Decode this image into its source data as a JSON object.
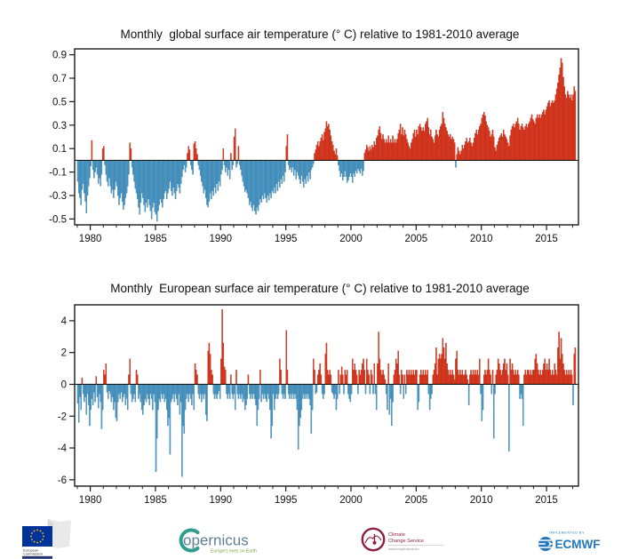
{
  "page": {
    "background": "#ffffff"
  },
  "chart_data": [
    {
      "type": "bar",
      "title": "Monthly  global surface air temperature (° C) relative to 1981-2010 average",
      "xlabel": "",
      "ylabel": "",
      "legend": "none",
      "grid": false,
      "start_year": 1979,
      "xlim": [
        1978.8,
        2017.45
      ],
      "ylim": [
        -0.55,
        0.95
      ],
      "yticks": [
        -0.5,
        -0.3,
        -0.1,
        0.1,
        0.3,
        0.5,
        0.7,
        0.9
      ],
      "ytick_format": "decimal",
      "xticks": [
        1980,
        1985,
        1990,
        1995,
        2000,
        2005,
        2010,
        2015
      ],
      "colors": {
        "positive_fill": "#e8391f",
        "positive_edge": "#9e2310",
        "negative_fill": "#4f9fca",
        "negative_edge": "#2f6f9d",
        "axis": "#1a1a1a"
      },
      "values": [
        -0.18,
        -0.28,
        -0.32,
        -0.38,
        -0.25,
        -0.2,
        -0.28,
        -0.35,
        -0.45,
        -0.3,
        -0.22,
        -0.15,
        -0.05,
        0.17,
        -0.08,
        -0.15,
        -0.1,
        -0.06,
        -0.12,
        -0.2,
        -0.15,
        -0.22,
        -0.12,
        0.1,
        0.12,
        -0.04,
        -0.12,
        -0.18,
        -0.22,
        -0.15,
        -0.22,
        -0.28,
        -0.25,
        -0.32,
        -0.25,
        -0.18,
        -0.22,
        -0.3,
        -0.38,
        -0.32,
        -0.28,
        -0.35,
        -0.42,
        -0.38,
        -0.32,
        -0.28,
        -0.22,
        -0.12,
        0.15,
        0.1,
        -0.06,
        -0.12,
        -0.18,
        -0.24,
        -0.28,
        -0.33,
        -0.4,
        -0.46,
        -0.36,
        -0.28,
        -0.32,
        -0.38,
        -0.44,
        -0.36,
        -0.4,
        -0.33,
        -0.38,
        -0.43,
        -0.5,
        -0.4,
        -0.36,
        -0.44,
        -0.46,
        -0.52,
        -0.43,
        -0.38,
        -0.33,
        -0.36,
        -0.4,
        -0.33,
        -0.28,
        -0.26,
        -0.33,
        -0.28,
        -0.24,
        -0.18,
        -0.26,
        -0.3,
        -0.23,
        -0.28,
        -0.33,
        -0.26,
        -0.2,
        -0.23,
        -0.28,
        -0.2,
        -0.14,
        -0.08,
        -0.04,
        -0.1,
        -0.06,
        0.06,
        0.12,
        0.09,
        -0.04,
        -0.08,
        -0.12,
        0.14,
        0.16,
        0.1,
        0.05,
        -0.04,
        -0.08,
        -0.13,
        -0.18,
        -0.22,
        -0.28,
        -0.25,
        -0.32,
        -0.38,
        -0.4,
        -0.35,
        -0.28,
        -0.33,
        -0.26,
        -0.3,
        -0.23,
        -0.28,
        -0.2,
        -0.26,
        -0.18,
        -0.22,
        -0.12,
        -0.08,
        0.1,
        -0.04,
        -0.1,
        -0.06,
        -0.13,
        -0.08,
        -0.16,
        0.06,
        -0.08,
        -0.04,
        0.2,
        0.27,
        -0.06,
        -0.03,
        0.12,
        -0.04,
        -0.08,
        -0.13,
        -0.18,
        -0.22,
        -0.27,
        -0.25,
        -0.28,
        -0.32,
        -0.38,
        -0.35,
        -0.4,
        -0.43,
        -0.38,
        -0.43,
        -0.46,
        -0.4,
        -0.43,
        -0.38,
        -0.33,
        -0.36,
        -0.3,
        -0.33,
        -0.28,
        -0.32,
        -0.36,
        -0.3,
        -0.34,
        -0.28,
        -0.32,
        -0.26,
        -0.28,
        -0.23,
        -0.28,
        -0.2,
        -0.26,
        -0.18,
        -0.23,
        -0.16,
        -0.2,
        -0.13,
        -0.18,
        -0.1,
        0.12,
        0.22,
        -0.04,
        -0.08,
        -0.06,
        -0.1,
        -0.06,
        -0.13,
        -0.08,
        -0.16,
        -0.1,
        -0.13,
        -0.16,
        -0.2,
        -0.13,
        -0.18,
        -0.23,
        -0.16,
        -0.2,
        -0.13,
        -0.18,
        -0.1,
        -0.16,
        -0.08,
        -0.06,
        -0.03,
        0.06,
        0.09,
        0.13,
        0.16,
        0.12,
        0.16,
        0.19,
        0.22,
        0.17,
        0.24,
        0.27,
        0.33,
        0.29,
        0.31,
        0.26,
        0.21,
        0.16,
        0.13,
        0.08,
        0.05,
        0.1,
        0.04,
        -0.04,
        -0.09,
        -0.14,
        -0.11,
        -0.17,
        -0.14,
        -0.09,
        -0.14,
        -0.19,
        -0.17,
        -0.14,
        -0.11,
        -0.14,
        -0.19,
        -0.11,
        -0.14,
        -0.09,
        -0.11,
        -0.07,
        -0.09,
        -0.11,
        -0.07,
        -0.13,
        -0.09,
        0.06,
        0.09,
        0.13,
        0.11,
        0.08,
        0.12,
        0.09,
        0.13,
        0.11,
        0.16,
        0.13,
        0.19,
        0.21,
        0.26,
        0.29,
        0.23,
        0.18,
        0.22,
        0.18,
        0.15,
        0.18,
        0.15,
        0.21,
        0.15,
        0.18,
        0.15,
        0.21,
        0.15,
        0.18,
        0.15,
        0.18,
        0.23,
        0.26,
        0.31,
        0.22,
        0.28,
        0.21,
        0.26,
        0.22,
        0.18,
        0.15,
        0.12,
        0.1,
        0.15,
        0.18,
        0.23,
        0.26,
        0.2,
        0.26,
        0.22,
        0.29,
        0.31,
        0.28,
        0.25,
        0.28,
        0.25,
        0.31,
        0.33,
        0.36,
        0.28,
        0.22,
        0.26,
        0.2,
        0.18,
        0.15,
        0.21,
        0.26,
        0.22,
        0.2,
        0.26,
        0.29,
        0.31,
        0.41,
        0.36,
        0.31,
        0.28,
        0.25,
        0.22,
        0.2,
        0.22,
        0.18,
        0.2,
        0.18,
        0.15,
        -0.06,
        0.05,
        0.11,
        0.08,
        0.05,
        0.08,
        0.13,
        0.1,
        0.13,
        0.16,
        0.19,
        0.15,
        0.16,
        0.19,
        0.15,
        0.12,
        0.15,
        0.19,
        0.23,
        0.26,
        0.22,
        0.26,
        0.29,
        0.31,
        0.36,
        0.39,
        0.41,
        0.38,
        0.33,
        0.3,
        0.28,
        0.25,
        0.2,
        0.22,
        0.26,
        0.2,
        0.11,
        0.08,
        0.13,
        0.16,
        0.19,
        0.21,
        0.23,
        0.2,
        0.26,
        0.22,
        0.2,
        0.18,
        0.15,
        0.12,
        0.21,
        0.26,
        0.29,
        0.31,
        0.28,
        0.31,
        0.33,
        0.36,
        0.31,
        0.26,
        0.29,
        0.31,
        0.28,
        0.26,
        0.29,
        0.31,
        0.28,
        0.31,
        0.33,
        0.36,
        0.39,
        0.35,
        0.33,
        0.31,
        0.36,
        0.39,
        0.36,
        0.39,
        0.36,
        0.39,
        0.41,
        0.43,
        0.39,
        0.43,
        0.46,
        0.49,
        0.51,
        0.46,
        0.49,
        0.51,
        0.49,
        0.51,
        0.56,
        0.61,
        0.66,
        0.73,
        0.79,
        0.87,
        0.83,
        0.71,
        0.63,
        0.56,
        0.53,
        0.59,
        0.56,
        0.53,
        0.56,
        0.51,
        0.56,
        0.63,
        0.59
      ]
    },
    {
      "type": "bar",
      "title": "Monthly  European surface air temperature (° C) relative to 1981-2010 average",
      "xlabel": "",
      "ylabel": "",
      "legend": "none",
      "grid": false,
      "start_year": 1979,
      "xlim": [
        1978.8,
        2017.45
      ],
      "ylim": [
        -6.4,
        5.0
      ],
      "yticks": [
        -6,
        -4,
        -2,
        0,
        2,
        4
      ],
      "ytick_format": "int",
      "xticks": [
        1980,
        1985,
        1990,
        1995,
        2000,
        2005,
        2010,
        2015
      ],
      "colors": {
        "positive_fill": "#e8391f",
        "positive_edge": "#9e2310",
        "negative_fill": "#4f9fca",
        "negative_edge": "#2f6f9d",
        "axis": "#1a1a1a"
      },
      "values": [
        -1.2,
        -2.4,
        -0.8,
        -1.6,
        0.4,
        -0.6,
        -1.1,
        -0.8,
        -1.9,
        -0.6,
        -1.3,
        -2.6,
        -1.6,
        -0.9,
        -1.3,
        -0.5,
        -1.1,
        0.5,
        -0.8,
        -1.5,
        -0.6,
        -1.1,
        -2.8,
        -1.6,
        0.9,
        0.6,
        1.3,
        -0.5,
        -0.9,
        -0.4,
        -0.6,
        -1.1,
        -0.8,
        -1.6,
        -1.1,
        -2.1,
        -2.3,
        -1.1,
        -0.6,
        -0.9,
        -0.5,
        -1.1,
        -0.8,
        -0.6,
        -1.3,
        -0.9,
        -1.6,
        0.6,
        1.6,
        -0.6,
        -1.1,
        -0.9,
        -0.6,
        -1.1,
        0.9,
        0.6,
        -0.9,
        -0.6,
        -1.1,
        -1.6,
        -1.9,
        -1.3,
        -0.9,
        -1.1,
        -0.6,
        -0.9,
        -1.3,
        -0.6,
        -0.9,
        -1.6,
        -0.6,
        -1.1,
        -5.5,
        -3.4,
        -1.6,
        -0.9,
        -1.1,
        -0.6,
        -0.9,
        -0.6,
        -1.1,
        -0.9,
        -1.6,
        -2.6,
        -2.1,
        -4.4,
        -1.1,
        -0.9,
        -0.6,
        -1.1,
        -0.6,
        -0.9,
        -1.3,
        -0.6,
        -1.9,
        -1.1,
        -5.8,
        -2.6,
        -3.1,
        -1.6,
        -0.9,
        -0.6,
        -1.1,
        -0.6,
        -0.9,
        -1.3,
        -0.6,
        -1.6,
        1.3,
        0.9,
        0.6,
        -0.6,
        -0.9,
        -0.6,
        -1.1,
        -0.6,
        -0.9,
        -0.6,
        -1.9,
        -2.3,
        2.1,
        2.6,
        1.9,
        0.9,
        0.6,
        -0.6,
        -0.9,
        -0.6,
        -0.9,
        -0.6,
        -0.4,
        -0.9,
        1.6,
        4.7,
        2.6,
        1.1,
        0.9,
        -0.6,
        -0.9,
        -0.6,
        -0.9,
        0.6,
        -0.6,
        -0.9,
        -0.6,
        -1.6,
        0.9,
        -0.6,
        -0.9,
        -0.6,
        -0.9,
        -0.6,
        -1.1,
        -0.9,
        -1.6,
        -1.3,
        -0.9,
        0.6,
        -0.6,
        -0.9,
        -0.6,
        -0.9,
        -0.6,
        -0.9,
        -1.3,
        -2.6,
        -1.6,
        -0.9,
        0.9,
        -1.1,
        -0.6,
        -0.9,
        -0.6,
        -0.9,
        -1.1,
        -0.6,
        -0.9,
        -1.6,
        -3.4,
        -2.6,
        -0.6,
        -1.6,
        -0.9,
        -0.6,
        -0.9,
        -0.6,
        1.6,
        0.9,
        -0.6,
        -0.9,
        -0.6,
        -0.9,
        3.4,
        0.9,
        -0.6,
        -0.9,
        -0.6,
        -0.9,
        -0.6,
        -0.9,
        -0.6,
        -0.9,
        -1.6,
        -4.1,
        -2.6,
        -2.1,
        -1.6,
        -0.9,
        -0.6,
        -0.9,
        -0.6,
        -0.9,
        -0.6,
        -0.9,
        -1.3,
        -3.1,
        -1.6,
        1.6,
        0.9,
        -0.6,
        -0.5,
        0.6,
        0.9,
        1.3,
        0.6,
        -0.6,
        -0.9,
        -0.6,
        1.9,
        2.6,
        0.9,
        0.6,
        0.9,
        0.6,
        -0.5,
        -0.6,
        -0.9,
        -0.6,
        -1.6,
        -0.9,
        0.9,
        -0.6,
        0.6,
        1.1,
        0.6,
        -0.6,
        0.9,
        0.6,
        0.9,
        -0.6,
        -0.9,
        -1.1,
        -0.6,
        1.6,
        0.9,
        1.3,
        0.9,
        0.6,
        -0.6,
        0.9,
        0.6,
        0.9,
        1.3,
        1.6,
        0.9,
        -0.6,
        1.6,
        0.9,
        0.6,
        -0.6,
        0.9,
        0.6,
        -0.6,
        1.3,
        -0.6,
        -1.6,
        1.3,
        3.3,
        1.6,
        0.9,
        0.6,
        0.9,
        0.6,
        0.3,
        -0.6,
        -1.6,
        1.3,
        -1.9,
        -0.9,
        -2.6,
        -1.1,
        0.6,
        0.9,
        1.6,
        1.3,
        2.1,
        0.6,
        -0.6,
        0.9,
        0.6,
        -0.9,
        0.6,
        -0.6,
        0.9,
        0.6,
        0.9,
        0.6,
        0.9,
        0.6,
        0.9,
        0.6,
        0.9,
        0.9,
        -1.6,
        -1.1,
        0.6,
        0.9,
        0.6,
        0.9,
        0.6,
        0.9,
        0.6,
        0.9,
        -0.6,
        -1.6,
        -0.9,
        -0.6,
        0.6,
        0.9,
        1.3,
        2.3,
        0.6,
        1.6,
        1.9,
        1.6,
        1.9,
        2.9,
        2.3,
        1.6,
        2.6,
        1.3,
        0.9,
        0.6,
        0.9,
        0.6,
        0.9,
        0.6,
        0.3,
        1.6,
        2.1,
        0.9,
        0.6,
        0.9,
        0.6,
        0.9,
        0.6,
        0.6,
        0.9,
        0.6,
        0.3,
        -1.3,
        0.6,
        0.9,
        0.6,
        0.9,
        0.6,
        0.9,
        0.6,
        0.9,
        0.6,
        1.6,
        -0.6,
        -2.3,
        -1.6,
        0.6,
        0.9,
        0.6,
        0.9,
        1.6,
        0.9,
        0.6,
        -0.6,
        0.9,
        -3.4,
        -0.6,
        0.6,
        0.9,
        1.6,
        1.3,
        0.9,
        0.6,
        0.9,
        1.3,
        1.6,
        0.9,
        1.3,
        0.6,
        -4.2,
        1.6,
        0.9,
        1.3,
        0.9,
        0.6,
        0.9,
        0.6,
        0.9,
        0.6,
        -0.9,
        -0.6,
        -0.9,
        -2.6,
        0.6,
        0.9,
        0.6,
        0.9,
        0.9,
        0.6,
        0.9,
        0.6,
        0.9,
        0.9,
        1.6,
        1.9,
        1.3,
        0.9,
        0.6,
        0.9,
        0.6,
        0.9,
        1.3,
        1.6,
        0.9,
        1.3,
        0.9,
        1.6,
        0.9,
        0.6,
        0.9,
        0.6,
        1.3,
        0.9,
        0.6,
        2.3,
        3.3,
        1.6,
        2.9,
        1.9,
        1.3,
        0.9,
        0.6,
        0.9,
        0.6,
        0.9,
        0.6,
        0.9,
        0.6,
        -1.3,
        1.9,
        2.3
      ]
    }
  ],
  "footer": {
    "eu": {
      "line1": "European",
      "line2": "Commission"
    },
    "copernicus": {
      "wordmark": "opernicus",
      "tagline": "Europe's eyes on Earth"
    },
    "c3s": {
      "line1": "Climate",
      "line2": "Change Service",
      "subtext": "www.copernicus.eu"
    },
    "ecmwf": {
      "pretext": "IMPLEMENTED BY",
      "wordmark": "ECMWF"
    }
  }
}
